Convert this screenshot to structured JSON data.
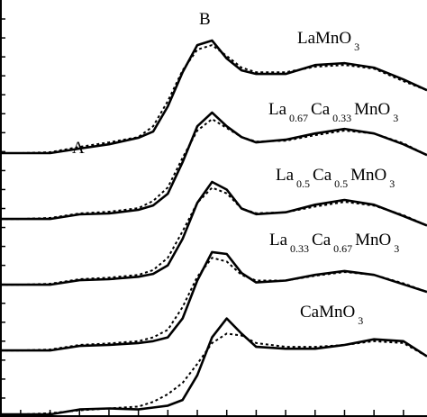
{
  "chart_data": {
    "type": "line",
    "x": [
      -0.7,
      0,
      1,
      2,
      3,
      4,
      4.5,
      5,
      5.5,
      6,
      6.5,
      7,
      7.5,
      8,
      9,
      10,
      11,
      12,
      13,
      13.8
    ],
    "xlim": [
      -0.7,
      13.8
    ],
    "ylim": [
      0,
      22
    ],
    "xticks": [
      0,
      1,
      2,
      3,
      4,
      5,
      6,
      7,
      8,
      9,
      10,
      11,
      12,
      13
    ],
    "yticks": [
      1,
      2,
      3,
      4,
      5,
      6,
      7,
      8,
      9,
      10,
      11,
      12,
      13,
      14,
      15,
      16,
      17,
      18,
      19,
      20,
      21
    ],
    "series": [
      {
        "style": "solid",
        "color": "#000000",
        "values": [
          13.92,
          13.92,
          13.92,
          14.16,
          14.39,
          14.73,
          15.06,
          16.39,
          18.19,
          19.62,
          19.86,
          18.91,
          18.29,
          18.1,
          18.1,
          18.57,
          18.67,
          18.43,
          17.81,
          17.24
        ]
      },
      {
        "style": "dotted",
        "color": "#000000",
        "values": [
          13.92,
          13.92,
          13.97,
          14.25,
          14.49,
          14.77,
          15.34,
          16.67,
          18.29,
          19.38,
          19.62,
          19.05,
          18.43,
          18.19,
          18.19,
          18.48,
          18.57,
          18.38,
          17.72,
          17.24
        ]
      },
      {
        "style": "solid",
        "color": "#000000",
        "values": [
          10.45,
          10.45,
          10.45,
          10.69,
          10.74,
          10.93,
          11.16,
          11.78,
          13.44,
          15.34,
          16.06,
          15.34,
          14.77,
          14.49,
          14.63,
          14.96,
          15.2,
          14.96,
          14.39,
          13.82
        ]
      },
      {
        "style": "dotted",
        "color": "#000000",
        "values": [
          10.45,
          10.45,
          10.5,
          10.74,
          10.83,
          11.02,
          11.4,
          12.11,
          13.68,
          15.11,
          15.72,
          15.25,
          14.77,
          14.53,
          14.58,
          14.87,
          15.11,
          14.96,
          14.44,
          13.82
        ]
      },
      {
        "style": "solid",
        "color": "#000000",
        "values": [
          6.98,
          6.98,
          6.98,
          7.22,
          7.27,
          7.4,
          7.55,
          8.0,
          9.4,
          11.3,
          12.4,
          12.0,
          11.0,
          10.7,
          10.8,
          11.2,
          11.45,
          11.2,
          10.6,
          10.1
        ]
      },
      {
        "style": "dotted",
        "color": "#000000",
        "values": [
          6.98,
          6.98,
          7.03,
          7.27,
          7.35,
          7.5,
          7.75,
          8.4,
          9.8,
          11.3,
          12.1,
          11.8,
          11.0,
          10.75,
          10.8,
          11.1,
          11.35,
          11.15,
          10.65,
          10.1
        ]
      },
      {
        "style": "solid",
        "color": "#000000",
        "values": [
          3.51,
          3.51,
          3.51,
          3.75,
          3.8,
          3.9,
          4.0,
          4.2,
          5.2,
          7.2,
          8.7,
          8.6,
          7.6,
          7.1,
          7.2,
          7.5,
          7.7,
          7.5,
          7.0,
          6.6
        ]
      },
      {
        "style": "dotted",
        "color": "#000000",
        "values": [
          3.51,
          3.51,
          3.56,
          3.8,
          3.88,
          4.0,
          4.2,
          4.6,
          5.8,
          7.4,
          8.4,
          8.2,
          7.5,
          7.2,
          7.2,
          7.45,
          7.65,
          7.5,
          7.05,
          6.6
        ]
      },
      {
        "style": "solid",
        "color": "#000000",
        "values": [
          0.14,
          0.14,
          0.14,
          0.4,
          0.45,
          0.4,
          0.5,
          0.6,
          0.9,
          2.2,
          4.2,
          5.2,
          4.4,
          3.7,
          3.6,
          3.6,
          3.8,
          4.1,
          4.0,
          3.2
        ]
      },
      {
        "style": "dotted",
        "color": "#000000",
        "values": [
          0.14,
          0.14,
          0.2,
          0.35,
          0.45,
          0.55,
          0.8,
          1.2,
          1.8,
          2.8,
          3.9,
          4.4,
          4.3,
          3.9,
          3.7,
          3.7,
          3.8,
          4.0,
          3.9,
          3.2
        ]
      }
    ],
    "labels": [
      {
        "parts": [
          "A"
        ]
      },
      {
        "parts": [
          "B"
        ]
      },
      {
        "parts": [
          "LaMnO",
          "3"
        ]
      },
      {
        "parts": [
          "La",
          "0.67",
          "Ca",
          "0.33",
          "MnO",
          "3"
        ]
      },
      {
        "parts": [
          "La",
          "0.5",
          "Ca",
          "0.5",
          "MnO",
          "3"
        ]
      },
      {
        "parts": [
          "La",
          "0.33",
          "Ca",
          "0.67",
          "MnO",
          "3"
        ]
      },
      {
        "parts": [
          "CaMnO",
          "3"
        ]
      }
    ]
  }
}
